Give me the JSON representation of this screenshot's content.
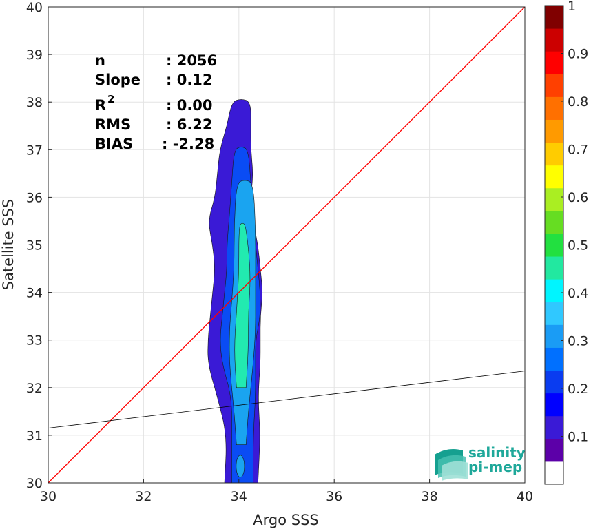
{
  "chart_data": {
    "type": "heatmap",
    "subtype": "density-contour-scatter",
    "xlabel": "Argo SSS",
    "ylabel": "Satellite SSS",
    "xlim": [
      30,
      40
    ],
    "ylim": [
      30,
      40
    ],
    "xticks": [
      30,
      32,
      34,
      36,
      38,
      40
    ],
    "yticks": [
      30,
      31,
      32,
      33,
      34,
      35,
      36,
      37,
      38,
      39,
      40
    ],
    "grid": true,
    "stats": {
      "n_label": "n",
      "n_value": ": 2056",
      "slope_label": "Slope",
      "slope_value": ": 0.12",
      "r2_label": "R",
      "r2_sup": "2",
      "r2_value": ": 0.00",
      "rms_label": "RMS",
      "rms_value": ": 6.22",
      "bias_label": "BIAS",
      "bias_value": ": -2.28"
    },
    "lines": [
      {
        "role": "one-to-one",
        "color": "#ff0000",
        "x": [
          30,
          40
        ],
        "y": [
          30,
          40
        ]
      },
      {
        "role": "regression",
        "color": "#000000",
        "x": [
          30,
          40
        ],
        "y": [
          31.15,
          32.35
        ]
      }
    ],
    "colorbar": {
      "range": [
        0,
        1
      ],
      "ticks": [
        0.1,
        0.2,
        0.3,
        0.4,
        0.5,
        0.6,
        0.7,
        0.8,
        0.9,
        1
      ],
      "colors": [
        "#ffffff",
        "#5c00a8",
        "#3a1ad6",
        "#0000ff",
        "#0a3cf0",
        "#0070ff",
        "#1a9cf5",
        "#30c8ff",
        "#00f5ff",
        "#22e8a0",
        "#22e040",
        "#66dd22",
        "#aaee22",
        "#ffff00",
        "#ffcc00",
        "#ff9a00",
        "#ff7000",
        "#ff4000",
        "#ff0000",
        "#cc0000",
        "#800000"
      ]
    },
    "density_levels": [
      {
        "level": 0.1,
        "color": "#3a1ad6",
        "x_left": [
          33.7,
          33.75,
          33.55,
          33.35,
          33.35,
          33.4,
          33.45,
          33.5,
          33.45,
          33.35,
          33.5,
          33.55,
          33.6,
          33.75,
          33.85
        ],
        "x_right": [
          34.4,
          34.45,
          34.4,
          34.45,
          34.45,
          34.45,
          34.5,
          34.45,
          34.4,
          34.3,
          34.25,
          34.3,
          34.25,
          34.25,
          34.25
        ],
        "y": [
          30.0,
          31.0,
          31.8,
          32.5,
          33.0,
          33.5,
          34.0,
          34.5,
          35.0,
          35.5,
          36.0,
          36.5,
          37.0,
          37.5,
          38.0
        ]
      },
      {
        "level": 0.2,
        "color": "#0a4cf4",
        "x_left": [
          33.85,
          33.85,
          33.85,
          33.65,
          33.6,
          33.65,
          33.7,
          33.75,
          33.75,
          33.8,
          33.85,
          33.9
        ],
        "x_right": [
          34.3,
          34.3,
          34.35,
          34.35,
          34.35,
          34.45,
          34.45,
          34.4,
          34.35,
          34.3,
          34.25,
          34.2
        ],
        "y": [
          30.0,
          31.0,
          31.8,
          32.5,
          33.0,
          33.5,
          34.0,
          34.5,
          35.0,
          35.6,
          36.3,
          37.0
        ]
      },
      {
        "level": 0.3,
        "color": "#1aa4f0",
        "x_left": [
          33.95,
          33.9,
          33.8,
          33.8,
          33.85,
          33.9,
          33.9,
          33.95
        ],
        "x_right": [
          34.15,
          34.2,
          34.3,
          34.35,
          34.35,
          34.35,
          34.35,
          34.3
        ],
        "y": [
          30.8,
          31.5,
          32.5,
          33.2,
          33.8,
          34.5,
          35.4,
          36.3
        ]
      },
      {
        "level": 0.4,
        "color": "#22eab0",
        "x_left": [
          33.95,
          33.9,
          33.95,
          34.0,
          34.0
        ],
        "x_right": [
          34.15,
          34.2,
          34.2,
          34.25,
          34.15
        ],
        "y": [
          32.0,
          32.8,
          33.6,
          34.4,
          35.4
        ]
      }
    ],
    "logo": {
      "line1": "salinity",
      "line2": "pi-mep"
    }
  }
}
